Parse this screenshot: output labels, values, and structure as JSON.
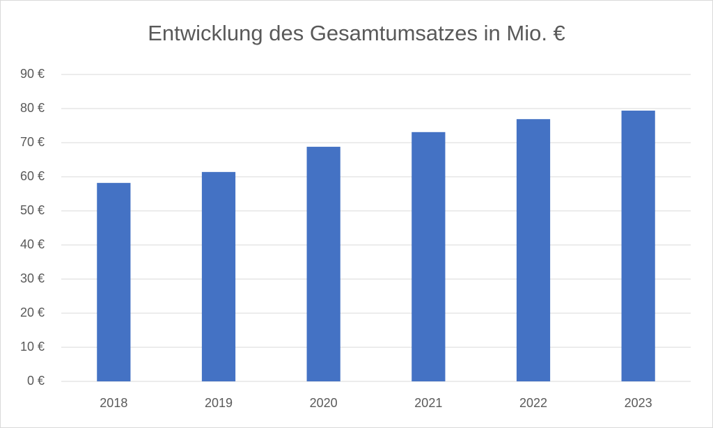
{
  "chart_data": {
    "type": "bar",
    "title": "Entwicklung des Gesamtumsatzes in Mio. €",
    "categories": [
      "2018",
      "2019",
      "2020",
      "2021",
      "2022",
      "2023"
    ],
    "values": [
      58.2,
      61.4,
      68.8,
      73.1,
      76.9,
      79.4
    ],
    "color": "#4472c4",
    "ylim": [
      0,
      90
    ],
    "yticks": [
      {
        "value": 0,
        "label": "0 €"
      },
      {
        "value": 10,
        "label": "10 €"
      },
      {
        "value": 20,
        "label": "20 €"
      },
      {
        "value": 30,
        "label": "30 €"
      },
      {
        "value": 40,
        "label": "40 €"
      },
      {
        "value": 50,
        "label": "50 €"
      },
      {
        "value": 60,
        "label": "60 €"
      },
      {
        "value": 70,
        "label": "70 €"
      },
      {
        "value": 80,
        "label": "80 €"
      },
      {
        "value": 90,
        "label": "90 €"
      }
    ],
    "grid": true
  }
}
